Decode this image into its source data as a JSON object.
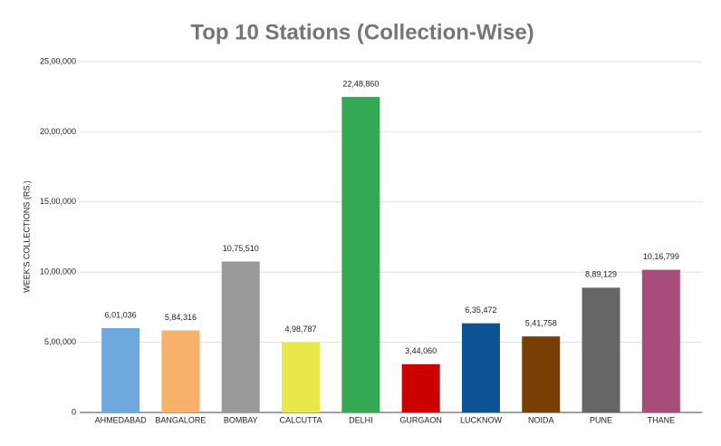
{
  "chart_data": {
    "type": "bar",
    "title": "Top 10 Stations (Collection-Wise)",
    "y_label": "WEEK'S COLLECTIONS (RS.)",
    "categories": [
      "AHMEDABAD",
      "BANGALORE",
      "BOMBAY",
      "CALCUTTA",
      "DELHI",
      "GURGAON",
      "LUCKNOW",
      "NOIDA",
      "PUNE",
      "THANE"
    ],
    "values": [
      601036,
      584316,
      1075510,
      498787,
      2248860,
      344060,
      635472,
      541758,
      889129,
      1016799
    ],
    "value_labels": [
      "6,01,036",
      "5,84,316",
      "10,75,510",
      "4,98,787",
      "22,48,860",
      "3,44,060",
      "6,35,472",
      "5,41,758",
      "8,89,129",
      "10,16,799"
    ],
    "colors": [
      "#6fa8dc",
      "#f6b26b",
      "#999999",
      "#e8e84a",
      "#34a853",
      "#cc0000",
      "#0b5394",
      "#783f04",
      "#666666",
      "#a64d79"
    ],
    "ylim": [
      0,
      2500000
    ],
    "yticks": [
      0,
      {
        "value": 500000,
        "label": "5,00,000"
      },
      {
        "value": 1000000,
        "label": "10,00,000"
      },
      {
        "value": 1500000,
        "label": "15,00,000"
      },
      {
        "value": 2000000,
        "label": "20,00,000"
      },
      {
        "value": 2500000,
        "label": "25,00,000"
      }
    ],
    "grid": true
  }
}
